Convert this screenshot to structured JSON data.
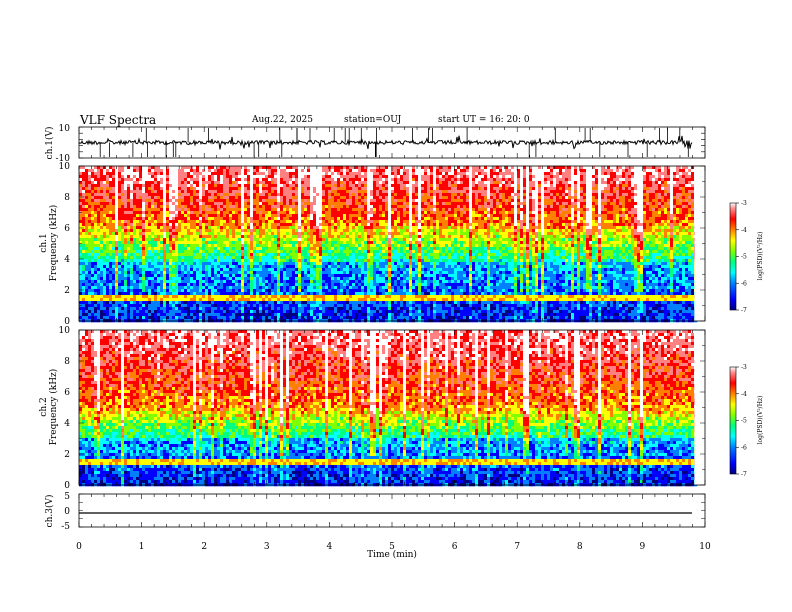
{
  "header": {
    "title": "VLF Spectra",
    "date": "Aug.22, 2025",
    "station": "station=OUJ",
    "start": "start UT = 16: 20: 0"
  },
  "axes": {
    "ch1_label": "ch.1(V)",
    "ch1_ticks": [
      "10",
      "-10"
    ],
    "spec1_label": "ch.1",
    "spec2_label": "ch.2",
    "freq_label": "Frequency (kHz)",
    "freq_ticks": [
      "0",
      "2",
      "4",
      "6",
      "8",
      "10"
    ],
    "ch3_label": "ch.3(V)",
    "ch3_ticks": [
      "5",
      "0",
      "-5"
    ],
    "time_label": "Time (min)",
    "time_ticks": [
      "0",
      "1",
      "2",
      "3",
      "4",
      "5",
      "6",
      "7",
      "8",
      "9",
      "10"
    ]
  },
  "colorbar": {
    "label": "log(PSD)(V²/Hz)",
    "ticks": [
      "-3",
      "-4",
      "-5",
      "-6",
      "-7"
    ],
    "colors": [
      "#000080",
      "#0000ff",
      "#0080ff",
      "#00ffff",
      "#00ff80",
      "#80ff00",
      "#ffff00",
      "#ff8000",
      "#ff0000",
      "#ff8080",
      "#ffffff"
    ]
  },
  "chart_data": {
    "type": "heatmap",
    "title": "VLF Spectra",
    "xlabel": "Time (min)",
    "xlim": [
      0,
      10
    ],
    "data_end_min": 9.83,
    "panels": [
      {
        "name": "ch.1(V)",
        "kind": "waveform",
        "ylim": [
          -10,
          10
        ],
        "baseline": 0
      },
      {
        "name": "ch.1",
        "kind": "spectrogram",
        "ylabel": "Frequency (kHz)",
        "ylim": [
          0,
          10
        ],
        "zlim": [
          -7,
          -3
        ],
        "dominant_band_kHz": {
          "low_noise_0_to_4": "blue",
          "4_to_6": "green-yellow",
          "6_to_10": "yellow-red"
        }
      },
      {
        "name": "ch.2",
        "kind": "spectrogram",
        "ylabel": "Frequency (kHz)",
        "ylim": [
          0,
          10
        ],
        "zlim": [
          -7,
          -3
        ],
        "dominant_band_kHz": {
          "low_noise_0_to_3": "blue",
          "3_to_5": "green-yellow",
          "5_to_10": "red"
        }
      },
      {
        "name": "ch.3(V)",
        "kind": "waveform",
        "ylim": [
          -5,
          5
        ],
        "baseline": -1
      }
    ]
  }
}
